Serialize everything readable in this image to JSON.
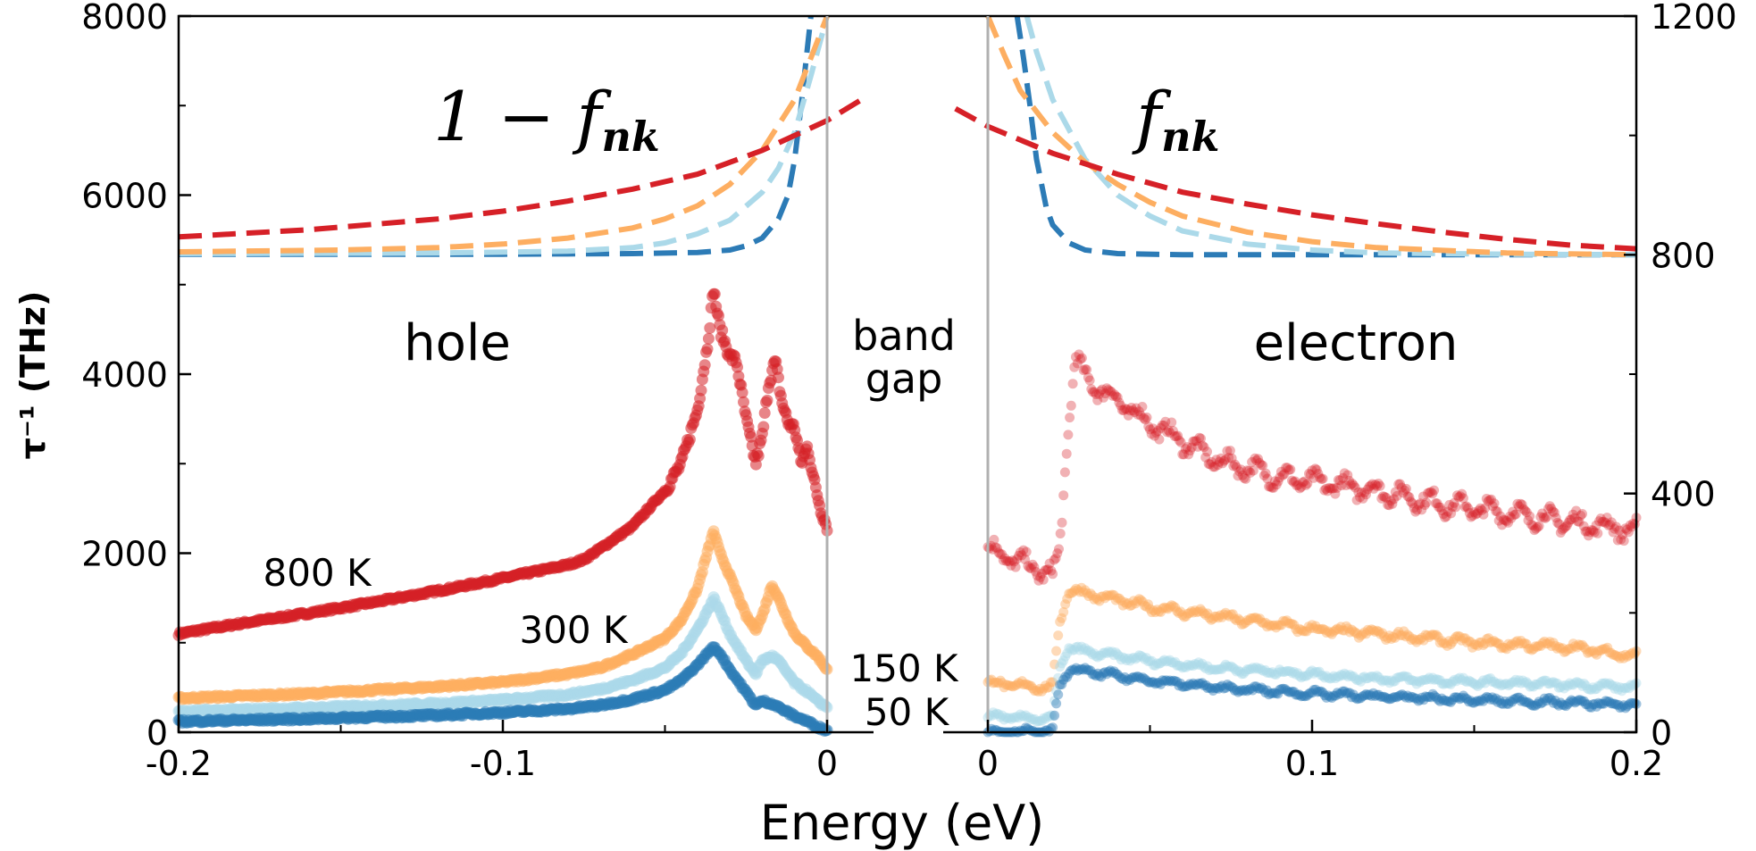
{
  "chart_data": {
    "type": "scatter",
    "xlabel": "Energy (eV)",
    "ylabel": "τ⁻¹ (THz)",
    "ylim": [
      0,
      8000
    ],
    "y2lim": [
      0,
      1200
    ],
    "panels": {
      "hole": {
        "xlim": [
          -0.2,
          0
        ],
        "xticks": [
          "-0.2",
          "-0.1",
          "0"
        ]
      },
      "gap": {
        "ticks": [
          "0",
          "0"
        ]
      },
      "electron": {
        "xlim": [
          0,
          0.2
        ],
        "xticks": [
          "0",
          "0.1",
          "0.2"
        ]
      }
    },
    "yticks": [
      "0",
      "2000",
      "4000",
      "6000",
      "8000"
    ],
    "y2ticks": [
      "0",
      "400",
      "800",
      "1200"
    ],
    "annotations": {
      "hole": "hole",
      "electron": "electron",
      "band_gap_line1": "band",
      "band_gap_line2": "gap",
      "occupation_hole": "1 − f",
      "occupation_hole_sub": "nk",
      "occupation_electron": "f",
      "occupation_electron_sub": "nk"
    },
    "series": [
      {
        "name": "800 K",
        "color": "#d62027",
        "hole_points": [
          [
            -0.2,
            1100
          ],
          [
            -0.18,
            1220
          ],
          [
            -0.16,
            1330
          ],
          [
            -0.14,
            1450
          ],
          [
            -0.12,
            1580
          ],
          [
            -0.1,
            1720
          ],
          [
            -0.08,
            1870
          ],
          [
            -0.075,
            1930
          ],
          [
            -0.07,
            2050
          ],
          [
            -0.06,
            2300
          ],
          [
            -0.05,
            2700
          ],
          [
            -0.045,
            3000
          ],
          [
            -0.04,
            3600
          ],
          [
            -0.037,
            4300
          ],
          [
            -0.035,
            4950
          ],
          [
            -0.033,
            4500
          ],
          [
            -0.03,
            4200
          ],
          [
            -0.028,
            4150
          ],
          [
            -0.025,
            3500
          ],
          [
            -0.022,
            3000
          ],
          [
            -0.02,
            3300
          ],
          [
            -0.018,
            3900
          ],
          [
            -0.016,
            4150
          ],
          [
            -0.014,
            3700
          ],
          [
            -0.012,
            3450
          ],
          [
            -0.01,
            3400
          ],
          [
            -0.008,
            3000
          ],
          [
            -0.006,
            3200
          ],
          [
            -0.004,
            2800
          ],
          [
            -0.002,
            2500
          ],
          [
            0,
            2300
          ]
        ],
        "electron_points": [
          [
            0,
            2050
          ],
          [
            0.01,
            1900
          ],
          [
            0.02,
            1750
          ],
          [
            0.022,
            2000
          ],
          [
            0.025,
            3500
          ],
          [
            0.027,
            4200
          ],
          [
            0.03,
            3950
          ],
          [
            0.04,
            3700
          ],
          [
            0.05,
            3450
          ],
          [
            0.06,
            3250
          ],
          [
            0.07,
            3050
          ],
          [
            0.08,
            2950
          ],
          [
            0.09,
            2850
          ],
          [
            0.1,
            2800
          ],
          [
            0.12,
            2700
          ],
          [
            0.14,
            2550
          ],
          [
            0.16,
            2450
          ],
          [
            0.18,
            2350
          ],
          [
            0.2,
            2250
          ]
        ]
      },
      {
        "name": "300 K",
        "color": "#fdae61",
        "hole_points": [
          [
            -0.2,
            380
          ],
          [
            -0.16,
            430
          ],
          [
            -0.12,
            510
          ],
          [
            -0.1,
            560
          ],
          [
            -0.08,
            650
          ],
          [
            -0.07,
            720
          ],
          [
            -0.06,
            870
          ],
          [
            -0.05,
            1050
          ],
          [
            -0.045,
            1250
          ],
          [
            -0.04,
            1600
          ],
          [
            -0.037,
            2000
          ],
          [
            -0.035,
            2250
          ],
          [
            -0.033,
            2000
          ],
          [
            -0.03,
            1750
          ],
          [
            -0.025,
            1300
          ],
          [
            -0.022,
            1150
          ],
          [
            -0.02,
            1300
          ],
          [
            -0.017,
            1650
          ],
          [
            -0.015,
            1500
          ],
          [
            -0.012,
            1250
          ],
          [
            -0.01,
            1100
          ],
          [
            -0.006,
            950
          ],
          [
            -0.003,
            850
          ],
          [
            0,
            700
          ]
        ],
        "electron_points": [
          [
            0,
            550
          ],
          [
            0.01,
            520
          ],
          [
            0.02,
            500
          ],
          [
            0.022,
            1200
          ],
          [
            0.025,
            1600
          ],
          [
            0.03,
            1550
          ],
          [
            0.05,
            1400
          ],
          [
            0.07,
            1300
          ],
          [
            0.1,
            1150
          ],
          [
            0.12,
            1100
          ],
          [
            0.15,
            1000
          ],
          [
            0.18,
            950
          ],
          [
            0.2,
            850
          ]
        ]
      },
      {
        "name": "150 K",
        "color": "#abd9e9",
        "hole_points": [
          [
            -0.2,
            230
          ],
          [
            -0.16,
            270
          ],
          [
            -0.12,
            320
          ],
          [
            -0.1,
            360
          ],
          [
            -0.08,
            420
          ],
          [
            -0.07,
            480
          ],
          [
            -0.06,
            580
          ],
          [
            -0.05,
            720
          ],
          [
            -0.045,
            880
          ],
          [
            -0.04,
            1150
          ],
          [
            -0.037,
            1350
          ],
          [
            -0.035,
            1500
          ],
          [
            -0.033,
            1350
          ],
          [
            -0.03,
            1100
          ],
          [
            -0.025,
            800
          ],
          [
            -0.022,
            650
          ],
          [
            -0.02,
            800
          ],
          [
            -0.017,
            850
          ],
          [
            -0.015,
            800
          ],
          [
            -0.012,
            650
          ],
          [
            -0.01,
            550
          ],
          [
            -0.006,
            450
          ],
          [
            -0.003,
            350
          ],
          [
            0,
            280
          ]
        ],
        "electron_points": [
          [
            0,
            180
          ],
          [
            0.01,
            160
          ],
          [
            0.02,
            150
          ],
          [
            0.022,
            700
          ],
          [
            0.025,
            950
          ],
          [
            0.03,
            900
          ],
          [
            0.05,
            800
          ],
          [
            0.07,
            720
          ],
          [
            0.1,
            650
          ],
          [
            0.12,
            600
          ],
          [
            0.15,
            560
          ],
          [
            0.18,
            530
          ],
          [
            0.2,
            500
          ]
        ]
      },
      {
        "name": "50 K",
        "color": "#2c7bb6",
        "hole_points": [
          [
            -0.2,
            120
          ],
          [
            -0.16,
            150
          ],
          [
            -0.12,
            190
          ],
          [
            -0.1,
            220
          ],
          [
            -0.08,
            260
          ],
          [
            -0.07,
            300
          ],
          [
            -0.06,
            370
          ],
          [
            -0.05,
            470
          ],
          [
            -0.045,
            580
          ],
          [
            -0.04,
            750
          ],
          [
            -0.037,
            880
          ],
          [
            -0.035,
            950
          ],
          [
            -0.033,
            880
          ],
          [
            -0.03,
            700
          ],
          [
            -0.025,
            450
          ],
          [
            -0.022,
            300
          ],
          [
            -0.02,
            350
          ],
          [
            -0.017,
            320
          ],
          [
            -0.015,
            280
          ],
          [
            -0.012,
            220
          ],
          [
            -0.01,
            180
          ],
          [
            -0.006,
            120
          ],
          [
            -0.003,
            60
          ],
          [
            0,
            20
          ]
        ],
        "electron_points": [
          [
            0,
            5
          ],
          [
            0.01,
            5
          ],
          [
            0.02,
            5
          ],
          [
            0.022,
            500
          ],
          [
            0.025,
            700
          ],
          [
            0.03,
            680
          ],
          [
            0.05,
            580
          ],
          [
            0.07,
            500
          ],
          [
            0.1,
            430
          ],
          [
            0.12,
            400
          ],
          [
            0.15,
            360
          ],
          [
            0.18,
            330
          ],
          [
            0.2,
            300
          ]
        ]
      }
    ],
    "occupation_series": [
      {
        "name": "800 K",
        "color": "#d62027",
        "hole": [
          [
            -0.2,
            830
          ],
          [
            -0.16,
            842
          ],
          [
            -0.12,
            860
          ],
          [
            -0.1,
            873
          ],
          [
            -0.08,
            890
          ],
          [
            -0.06,
            910
          ],
          [
            -0.04,
            935
          ],
          [
            -0.02,
            975
          ],
          [
            0,
            1025
          ],
          [
            0.01,
            1058
          ]
        ],
        "electron": [
          [
            -0.01,
            1045
          ],
          [
            0,
            1015
          ],
          [
            0.02,
            970
          ],
          [
            0.04,
            935
          ],
          [
            0.06,
            905
          ],
          [
            0.08,
            885
          ],
          [
            0.1,
            867
          ],
          [
            0.12,
            852
          ],
          [
            0.14,
            838
          ],
          [
            0.16,
            826
          ],
          [
            0.18,
            816
          ],
          [
            0.2,
            810
          ]
        ]
      },
      {
        "name": "300 K",
        "color": "#fdae61",
        "hole": [
          [
            -0.2,
            805
          ],
          [
            -0.15,
            808
          ],
          [
            -0.12,
            812
          ],
          [
            -0.1,
            818
          ],
          [
            -0.08,
            828
          ],
          [
            -0.06,
            845
          ],
          [
            -0.05,
            860
          ],
          [
            -0.04,
            882
          ],
          [
            -0.03,
            918
          ],
          [
            -0.02,
            975
          ],
          [
            -0.01,
            1060
          ],
          [
            -0.005,
            1130
          ],
          [
            0,
            1200
          ]
        ],
        "electron": [
          [
            0,
            1200
          ],
          [
            0.005,
            1135
          ],
          [
            0.01,
            1075
          ],
          [
            0.02,
            1005
          ],
          [
            0.03,
            955
          ],
          [
            0.04,
            918
          ],
          [
            0.05,
            888
          ],
          [
            0.06,
            865
          ],
          [
            0.08,
            838
          ],
          [
            0.1,
            822
          ],
          [
            0.12,
            812
          ],
          [
            0.16,
            803
          ],
          [
            0.2,
            800
          ]
        ]
      },
      {
        "name": "150 K",
        "color": "#abd9e9",
        "hole": [
          [
            -0.2,
            802
          ],
          [
            -0.12,
            803
          ],
          [
            -0.08,
            806
          ],
          [
            -0.06,
            812
          ],
          [
            -0.05,
            820
          ],
          [
            -0.04,
            835
          ],
          [
            -0.03,
            858
          ],
          [
            -0.02,
            905
          ],
          [
            -0.015,
            945
          ],
          [
            -0.01,
            1005
          ],
          [
            -0.005,
            1100
          ],
          [
            0,
            1200
          ]
        ],
        "electron": [
          [
            0.012,
            1200
          ],
          [
            0.015,
            1140
          ],
          [
            0.02,
            1060
          ],
          [
            0.03,
            960
          ],
          [
            0.04,
            900
          ],
          [
            0.05,
            865
          ],
          [
            0.06,
            840
          ],
          [
            0.08,
            818
          ],
          [
            0.1,
            808
          ],
          [
            0.12,
            803
          ],
          [
            0.16,
            801
          ],
          [
            0.2,
            800
          ]
        ]
      },
      {
        "name": "50 K",
        "color": "#2c7bb6",
        "hole": [
          [
            -0.2,
            801
          ],
          [
            -0.1,
            801
          ],
          [
            -0.06,
            802
          ],
          [
            -0.04,
            804
          ],
          [
            -0.03,
            808
          ],
          [
            -0.025,
            815
          ],
          [
            -0.02,
            828
          ],
          [
            -0.015,
            860
          ],
          [
            -0.012,
            900
          ],
          [
            -0.01,
            960
          ],
          [
            -0.008,
            1050
          ],
          [
            -0.006,
            1150
          ],
          [
            -0.005,
            1200
          ]
        ],
        "electron": [
          [
            0.009,
            1200
          ],
          [
            0.011,
            1130
          ],
          [
            0.013,
            1050
          ],
          [
            0.015,
            960
          ],
          [
            0.018,
            880
          ],
          [
            0.02,
            850
          ],
          [
            0.025,
            820
          ],
          [
            0.03,
            808
          ],
          [
            0.04,
            802
          ],
          [
            0.06,
            800
          ],
          [
            0.2,
            800
          ]
        ]
      }
    ]
  }
}
